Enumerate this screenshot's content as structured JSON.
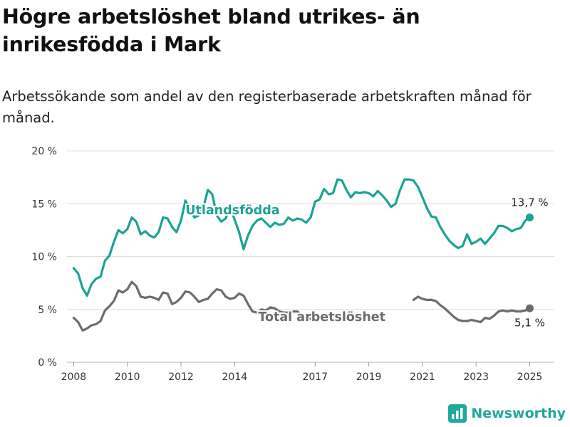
{
  "title": "Högre arbetslöshet bland utrikes- än inrikesfödda i Mark",
  "subtitle": "Arbetssökande som andel av den registerbaserade arbetskraften månad för månad.",
  "brand": {
    "name": "Newsworthy",
    "icon": "newsworthy-bar-chart-logo",
    "color": "#20a89a"
  },
  "chart_data": {
    "type": "line",
    "xlabel": "",
    "ylabel": "",
    "x_ticks": [
      "2008",
      "2010",
      "2012",
      "2014",
      "2017",
      "2019",
      "2021",
      "2023",
      "2025"
    ],
    "y_ticks": [
      "0 %",
      "5 %",
      "10 %",
      "15 %",
      "20 %"
    ],
    "ylim": [
      0,
      20
    ],
    "xlim": [
      "2007-10",
      "2025-12"
    ],
    "grid": true,
    "series": [
      {
        "name": "Utlandsfödda",
        "color": "#1aa394",
        "end_label": "13,7 %",
        "points": [
          [
            "2008-01",
            8.9
          ],
          [
            "2008-03",
            8.4
          ],
          [
            "2008-05",
            7.0
          ],
          [
            "2008-07",
            6.3
          ],
          [
            "2008-09",
            7.4
          ],
          [
            "2008-11",
            7.9
          ],
          [
            "2009-01",
            8.1
          ],
          [
            "2009-03",
            9.6
          ],
          [
            "2009-05",
            10.1
          ],
          [
            "2009-07",
            11.4
          ],
          [
            "2009-09",
            12.5
          ],
          [
            "2009-11",
            12.2
          ],
          [
            "2010-01",
            12.6
          ],
          [
            "2010-03",
            13.7
          ],
          [
            "2010-05",
            13.3
          ],
          [
            "2010-07",
            12.1
          ],
          [
            "2010-09",
            12.4
          ],
          [
            "2010-11",
            12.0
          ],
          [
            "2011-01",
            11.8
          ],
          [
            "2011-03",
            12.3
          ],
          [
            "2011-05",
            13.7
          ],
          [
            "2011-07",
            13.6
          ],
          [
            "2011-09",
            12.8
          ],
          [
            "2011-11",
            12.3
          ],
          [
            "2012-01",
            13.4
          ],
          [
            "2012-03",
            15.3
          ],
          [
            "2012-05",
            14.4
          ],
          [
            "2012-07",
            13.7
          ],
          [
            "2012-09",
            13.9
          ],
          [
            "2012-11",
            14.6
          ],
          [
            "2013-01",
            16.3
          ],
          [
            "2013-03",
            15.9
          ],
          [
            "2013-05",
            13.9
          ],
          [
            "2013-07",
            13.3
          ],
          [
            "2013-09",
            13.6
          ],
          [
            "2013-11",
            14.7
          ],
          [
            "2014-01",
            13.5
          ],
          [
            "2014-03",
            12.3
          ],
          [
            "2014-05",
            10.7
          ],
          [
            "2014-07",
            12.0
          ],
          [
            "2014-09",
            12.9
          ],
          [
            "2014-11",
            13.4
          ],
          [
            "2015-01",
            13.6
          ],
          [
            "2015-03",
            13.2
          ],
          [
            "2015-05",
            12.8
          ],
          [
            "2015-07",
            13.2
          ],
          [
            "2015-09",
            13.0
          ],
          [
            "2015-11",
            13.1
          ],
          [
            "2016-01",
            13.7
          ],
          [
            "2016-03",
            13.4
          ],
          [
            "2016-05",
            13.6
          ],
          [
            "2016-07",
            13.5
          ],
          [
            "2016-09",
            13.2
          ],
          [
            "2016-11",
            13.7
          ],
          [
            "2017-01",
            15.2
          ],
          [
            "2017-03",
            15.4
          ],
          [
            "2017-05",
            16.4
          ],
          [
            "2017-07",
            15.9
          ],
          [
            "2017-09",
            16.0
          ],
          [
            "2017-11",
            17.3
          ],
          [
            "2018-01",
            17.2
          ],
          [
            "2018-03",
            16.3
          ],
          [
            "2018-05",
            15.6
          ],
          [
            "2018-07",
            16.1
          ],
          [
            "2018-09",
            16.0
          ],
          [
            "2018-11",
            16.1
          ],
          [
            "2019-01",
            16.0
          ],
          [
            "2019-03",
            15.7
          ],
          [
            "2019-05",
            16.2
          ],
          [
            "2019-07",
            15.8
          ],
          [
            "2019-09",
            15.3
          ],
          [
            "2019-11",
            14.7
          ],
          [
            "2020-01",
            15.0
          ],
          [
            "2020-03",
            16.3
          ],
          [
            "2020-05",
            17.3
          ],
          [
            "2020-07",
            17.3
          ],
          [
            "2020-09",
            17.2
          ],
          [
            "2020-11",
            16.6
          ],
          [
            "2021-01",
            15.6
          ],
          [
            "2021-03",
            14.6
          ],
          [
            "2021-05",
            13.8
          ],
          [
            "2021-07",
            13.7
          ],
          [
            "2021-09",
            12.8
          ],
          [
            "2021-11",
            12.1
          ],
          [
            "2022-01",
            11.5
          ],
          [
            "2022-03",
            11.1
          ],
          [
            "2022-05",
            10.8
          ],
          [
            "2022-07",
            11.0
          ],
          [
            "2022-09",
            12.1
          ],
          [
            "2022-11",
            11.2
          ],
          [
            "2023-01",
            11.4
          ],
          [
            "2023-03",
            11.7
          ],
          [
            "2023-05",
            11.2
          ],
          [
            "2023-07",
            11.7
          ],
          [
            "2023-09",
            12.2
          ],
          [
            "2023-11",
            12.9
          ],
          [
            "2024-01",
            12.9
          ],
          [
            "2024-03",
            12.7
          ],
          [
            "2024-05",
            12.4
          ],
          [
            "2024-07",
            12.6
          ],
          [
            "2024-09",
            12.7
          ],
          [
            "2024-11",
            13.4
          ],
          [
            "2025-01",
            13.7
          ]
        ]
      },
      {
        "name": "Total arbetslöshet",
        "color": "#6b6b70",
        "end_label": "5,1 %",
        "points": [
          [
            "2008-01",
            4.2
          ],
          [
            "2008-03",
            3.8
          ],
          [
            "2008-05",
            3.0
          ],
          [
            "2008-07",
            3.2
          ],
          [
            "2008-09",
            3.5
          ],
          [
            "2008-11",
            3.6
          ],
          [
            "2009-01",
            3.9
          ],
          [
            "2009-03",
            4.9
          ],
          [
            "2009-05",
            5.3
          ],
          [
            "2009-07",
            5.8
          ],
          [
            "2009-09",
            6.8
          ],
          [
            "2009-11",
            6.6
          ],
          [
            "2010-01",
            6.9
          ],
          [
            "2010-03",
            7.6
          ],
          [
            "2010-05",
            7.2
          ],
          [
            "2010-07",
            6.2
          ],
          [
            "2010-09",
            6.1
          ],
          [
            "2010-11",
            6.2
          ],
          [
            "2011-01",
            6.1
          ],
          [
            "2011-03",
            5.9
          ],
          [
            "2011-05",
            6.6
          ],
          [
            "2011-07",
            6.5
          ],
          [
            "2011-09",
            5.5
          ],
          [
            "2011-11",
            5.7
          ],
          [
            "2012-01",
            6.1
          ],
          [
            "2012-03",
            6.7
          ],
          [
            "2012-05",
            6.6
          ],
          [
            "2012-07",
            6.2
          ],
          [
            "2012-09",
            5.7
          ],
          [
            "2012-11",
            5.9
          ],
          [
            "2013-01",
            6.0
          ],
          [
            "2013-03",
            6.5
          ],
          [
            "2013-05",
            6.9
          ],
          [
            "2013-07",
            6.8
          ],
          [
            "2013-09",
            6.2
          ],
          [
            "2013-11",
            6.0
          ],
          [
            "2014-01",
            6.1
          ],
          [
            "2014-03",
            6.5
          ],
          [
            "2014-05",
            6.3
          ],
          [
            "2014-07",
            5.5
          ],
          [
            "2014-09",
            4.8
          ],
          [
            "2014-11",
            4.7
          ],
          [
            "2015-01",
            5.0
          ],
          [
            "2015-03",
            4.9
          ],
          [
            "2015-05",
            5.2
          ],
          [
            "2015-07",
            5.1
          ],
          [
            "2015-09",
            4.8
          ],
          [
            "2015-11",
            4.7
          ],
          [
            "2016-01",
            4.7
          ],
          [
            "2016-03",
            4.8
          ],
          [
            "2016-05",
            4.8
          ],
          [
            "2016-07",
            4.5
          ],
          [
            "2016-09",
            4.2
          ],
          [
            "2016-11",
            4.1
          ],
          [
            "2017-01",
            4.1
          ],
          [
            "2020-09",
            5.9
          ],
          [
            "2020-11",
            6.2
          ],
          [
            "2021-01",
            6.0
          ],
          [
            "2021-03",
            5.9
          ],
          [
            "2021-05",
            5.9
          ],
          [
            "2021-07",
            5.8
          ],
          [
            "2021-09",
            5.4
          ],
          [
            "2021-11",
            5.1
          ],
          [
            "2022-01",
            4.7
          ],
          [
            "2022-03",
            4.3
          ],
          [
            "2022-05",
            4.0
          ],
          [
            "2022-07",
            3.9
          ],
          [
            "2022-09",
            3.9
          ],
          [
            "2022-11",
            4.0
          ],
          [
            "2023-01",
            3.9
          ],
          [
            "2023-03",
            3.8
          ],
          [
            "2023-05",
            4.2
          ],
          [
            "2023-07",
            4.1
          ],
          [
            "2023-09",
            4.4
          ],
          [
            "2023-11",
            4.8
          ],
          [
            "2024-01",
            4.9
          ],
          [
            "2024-03",
            4.8
          ],
          [
            "2024-05",
            4.9
          ],
          [
            "2024-07",
            4.8
          ],
          [
            "2024-09",
            4.8
          ],
          [
            "2024-11",
            4.9
          ],
          [
            "2025-01",
            5.1
          ]
        ]
      }
    ]
  }
}
